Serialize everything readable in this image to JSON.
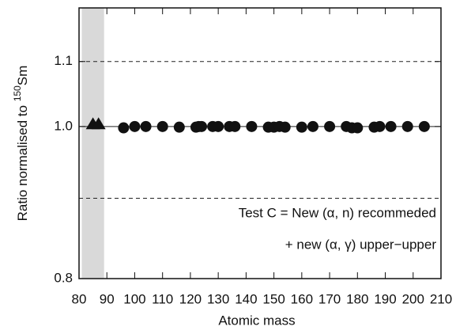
{
  "chart_data": {
    "type": "scatter",
    "ylabel": {
      "text": "Ratio normalised to ",
      "superscript": "150",
      "suffix": "Sm"
    },
    "xlabel": "Atomic mass",
    "xlim": [
      80,
      210
    ],
    "xticks": [
      80,
      90,
      100,
      110,
      120,
      130,
      140,
      150,
      160,
      170,
      180,
      190,
      200,
      210
    ],
    "ylim": [
      0.8,
      1.19
    ],
    "log_y": true,
    "yticks": [
      0.8,
      {
        "value": 1,
        "label": "1.0"
      },
      1.1
    ],
    "reference_lines": [
      0.9,
      1,
      1.1
    ],
    "reference_line_styles": [
      "dashed",
      "solid",
      "dashed"
    ],
    "shaded_region": [
      81,
      89
    ],
    "shaded_color": "#d9d9d9",
    "annotations": [
      "Test C = New (α, n) recommeded",
      "+ new (α, γ) upper−upper"
    ],
    "series": [
      {
        "marker": "triangle",
        "color": "#111111",
        "x": [
          85,
          87
        ],
        "values": [
          1.003,
          1.003
        ]
      },
      {
        "marker": "circle",
        "color": "#111111",
        "x": [
          96,
          100,
          104,
          110,
          116,
          122,
          123,
          124,
          128,
          130,
          134,
          136,
          142,
          148,
          150,
          152,
          154,
          160,
          164,
          170,
          176,
          178,
          180,
          186,
          188,
          192,
          198,
          204
        ],
        "values": [
          0.998,
          1,
          1,
          1,
          0.999,
          0.999,
          1,
          1,
          1,
          1,
          1,
          1,
          1,
          0.999,
          0.999,
          1,
          0.999,
          0.999,
          1,
          1,
          1,
          0.998,
          0.998,
          0.999,
          1,
          1,
          1,
          1
        ]
      }
    ]
  }
}
